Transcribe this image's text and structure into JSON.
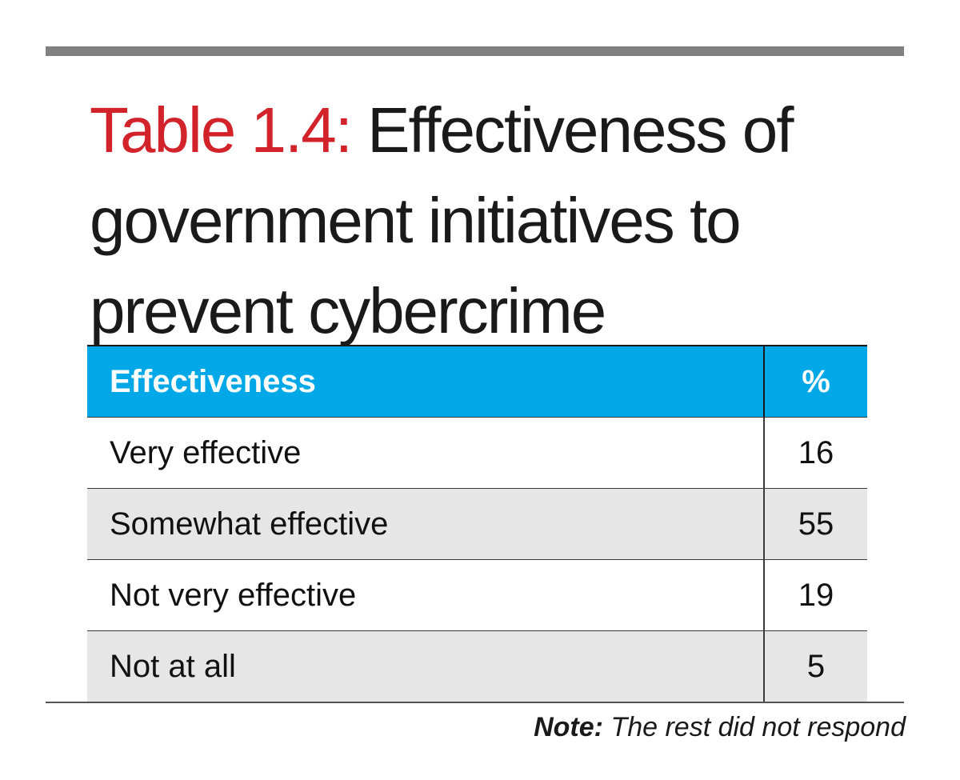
{
  "title": {
    "prefix": "Table 1.4:",
    "text": "Effectiveness of government initiatives to prevent cybercrime"
  },
  "colors": {
    "prefix": "#d2232a",
    "header_bg": "#00a8e8",
    "stripe": "#e6e6e6",
    "top_rule": "#808080"
  },
  "table": {
    "headers": [
      "Effectiveness",
      "%"
    ],
    "rows": [
      {
        "label": "Very effective",
        "value": "16"
      },
      {
        "label": "Somewhat effective",
        "value": "55"
      },
      {
        "label": "Not very effective",
        "value": "19"
      },
      {
        "label": "Not at all",
        "value": "5"
      }
    ]
  },
  "note": {
    "label": "Note:",
    "text": "The rest did not respond"
  },
  "chart_data": {
    "type": "table",
    "title": "Table 1.4: Effectiveness of government initiatives to prevent cybercrime",
    "columns": [
      "Effectiveness",
      "%"
    ],
    "categories": [
      "Very effective",
      "Somewhat effective",
      "Not very effective",
      "Not at all"
    ],
    "values": [
      16,
      55,
      19,
      5
    ],
    "note": "Note: The rest did not respond"
  }
}
